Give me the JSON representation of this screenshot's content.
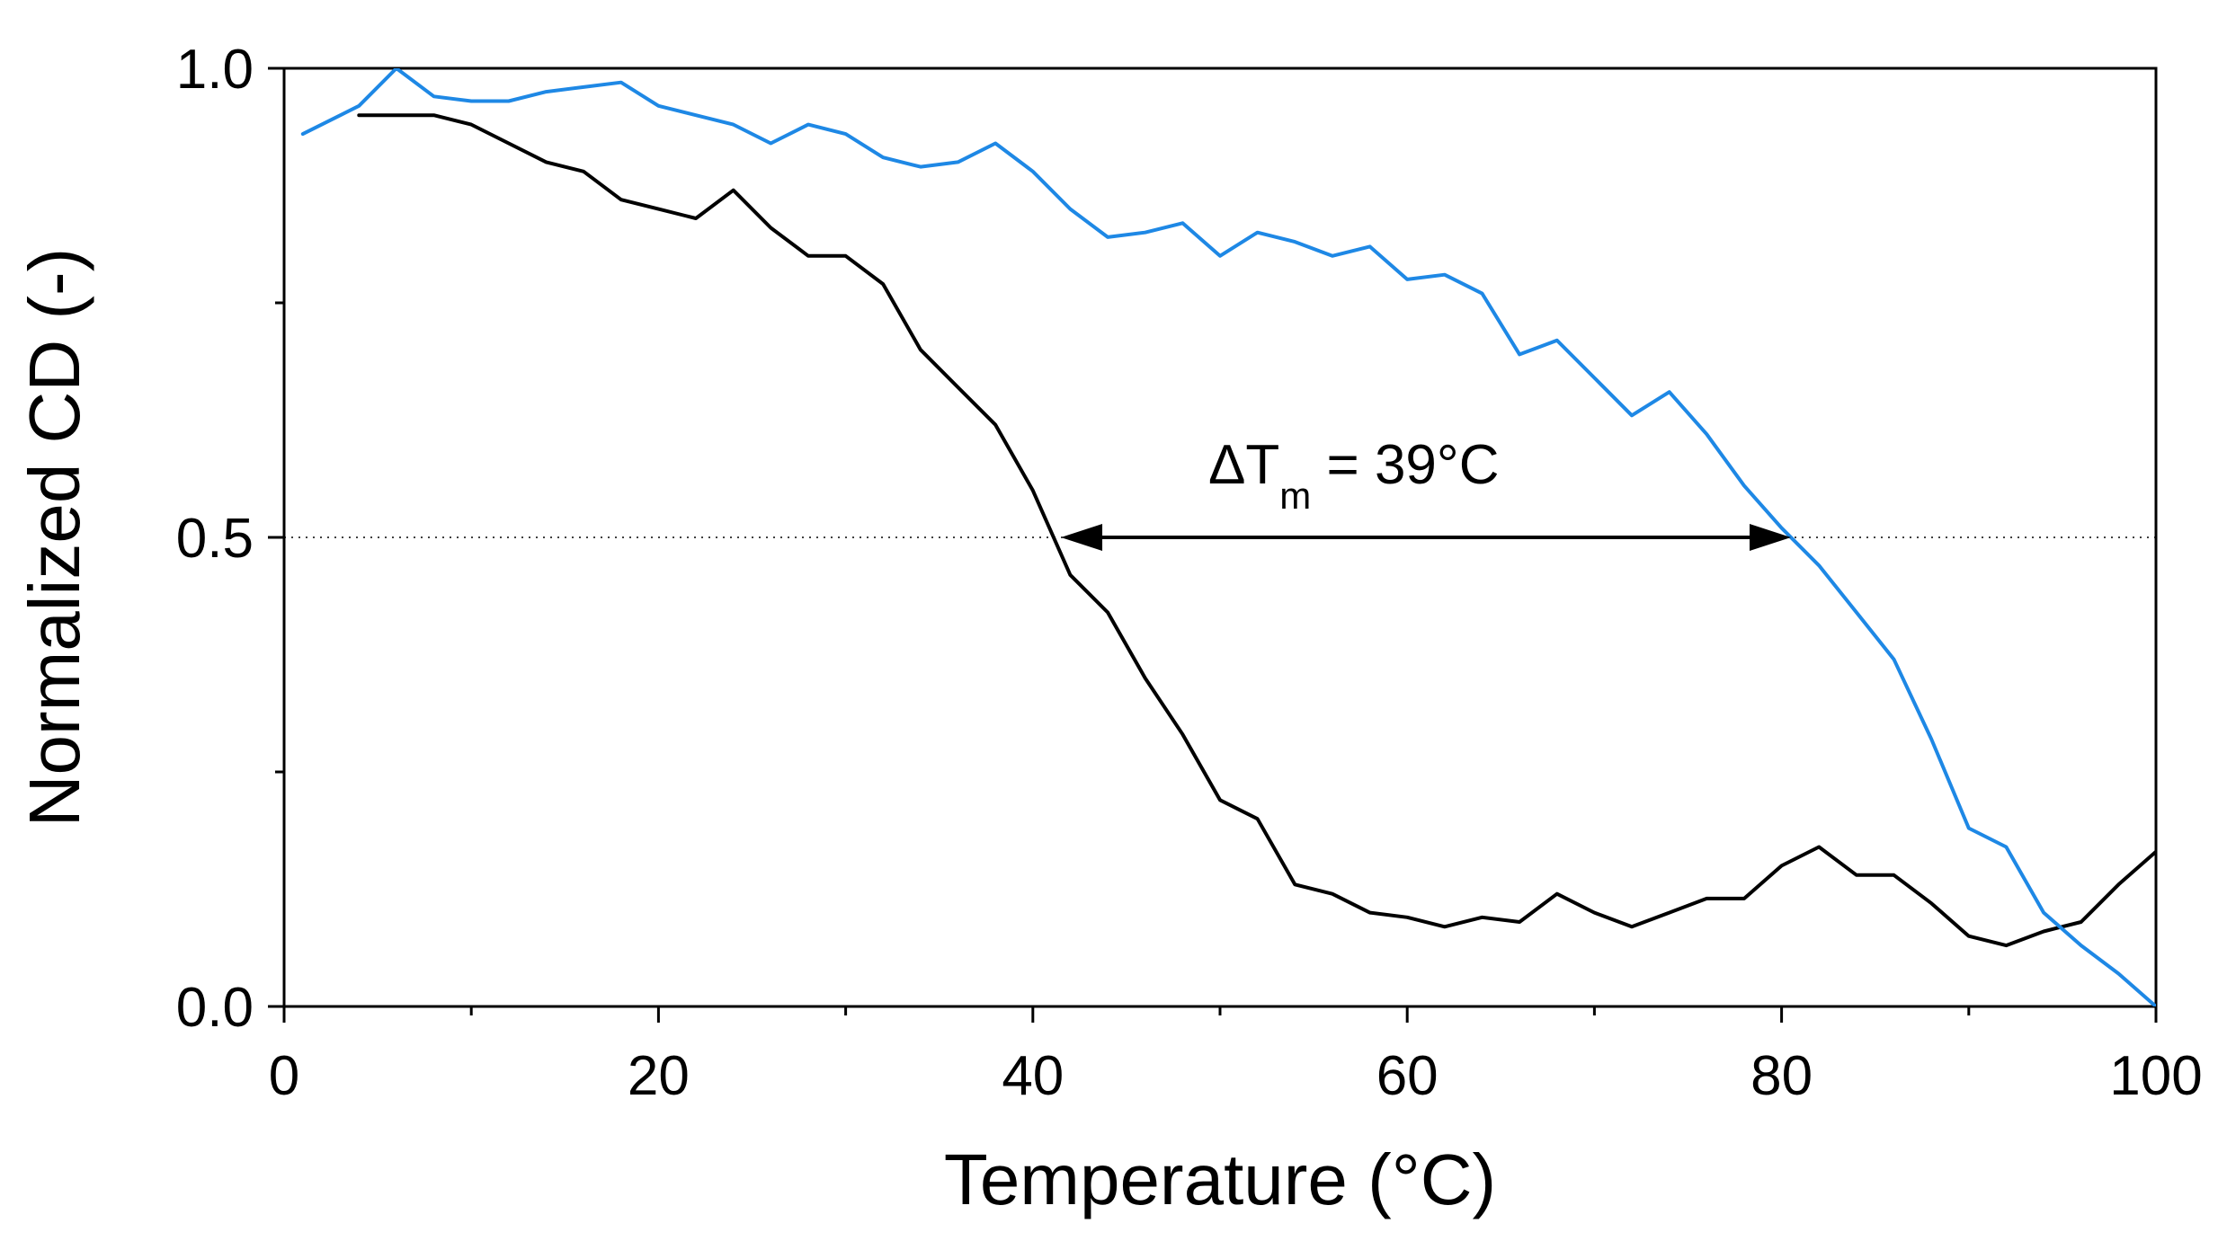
{
  "chart_data": {
    "type": "line",
    "title": "",
    "xlabel": "Temperature (°C)",
    "ylabel": "Normalized CD (-)",
    "xlim": [
      0,
      100
    ],
    "ylim": [
      0,
      1
    ],
    "x_ticks": [
      0,
      20,
      40,
      60,
      80,
      100
    ],
    "x_tick_labels": [
      "0",
      "20",
      "40",
      "60",
      "80",
      "100"
    ],
    "y_ticks": [
      0,
      0.5,
      1
    ],
    "y_tick_labels": [
      "0.0",
      "0.5",
      "1.0"
    ],
    "grid": false,
    "legend": null,
    "reference_line": {
      "y": 0.5,
      "style": "dotted"
    },
    "series": [
      {
        "name": "black-curve",
        "color": "#000000",
        "x": [
          4,
          6,
          8,
          10,
          12,
          14,
          16,
          18,
          20,
          22,
          24,
          26,
          28,
          30,
          32,
          34,
          36,
          38,
          40,
          42,
          44,
          46,
          48,
          50,
          52,
          54,
          56,
          58,
          60,
          62,
          64,
          66,
          68,
          70,
          72,
          74,
          76,
          78,
          80,
          82,
          84,
          86,
          88,
          90,
          92,
          94,
          96,
          98,
          100
        ],
        "values": [
          0.95,
          0.95,
          0.95,
          0.94,
          0.92,
          0.9,
          0.89,
          0.86,
          0.85,
          0.84,
          0.87,
          0.83,
          0.8,
          0.8,
          0.77,
          0.7,
          0.66,
          0.62,
          0.55,
          0.46,
          0.42,
          0.35,
          0.29,
          0.22,
          0.2,
          0.13,
          0.12,
          0.1,
          0.095,
          0.085,
          0.095,
          0.09,
          0.12,
          0.1,
          0.085,
          0.1,
          0.115,
          0.115,
          0.15,
          0.17,
          0.14,
          0.14,
          0.11,
          0.075,
          0.065,
          0.08,
          0.09,
          0.13,
          0.165
        ]
      },
      {
        "name": "blue-curve",
        "color": "#1e88e5",
        "x": [
          1,
          4,
          6,
          8,
          10,
          12,
          14,
          16,
          18,
          20,
          22,
          24,
          26,
          28,
          30,
          32,
          34,
          36,
          38,
          40,
          42,
          44,
          46,
          48,
          50,
          52,
          54,
          56,
          58,
          60,
          62,
          64,
          66,
          68,
          70,
          72,
          74,
          76,
          78,
          80,
          82,
          84,
          86,
          88,
          90,
          92,
          94,
          96,
          98,
          100
        ],
        "values": [
          0.93,
          0.96,
          1.0,
          0.97,
          0.965,
          0.965,
          0.975,
          0.98,
          0.985,
          0.96,
          0.95,
          0.94,
          0.92,
          0.94,
          0.93,
          0.905,
          0.895,
          0.9,
          0.92,
          0.89,
          0.85,
          0.82,
          0.825,
          0.835,
          0.8,
          0.825,
          0.815,
          0.8,
          0.81,
          0.775,
          0.78,
          0.76,
          0.695,
          0.71,
          0.67,
          0.63,
          0.655,
          0.61,
          0.555,
          0.51,
          0.47,
          0.42,
          0.37,
          0.285,
          0.19,
          0.17,
          0.1,
          0.065,
          0.035,
          0.0
        ]
      }
    ],
    "annotations": [
      {
        "type": "double-arrow",
        "x_start": 41.5,
        "x_end": 80.5,
        "y": 0.5,
        "label_main": "ΔT",
        "label_sub": "m",
        "label_suffix": " = 39°C"
      }
    ]
  }
}
